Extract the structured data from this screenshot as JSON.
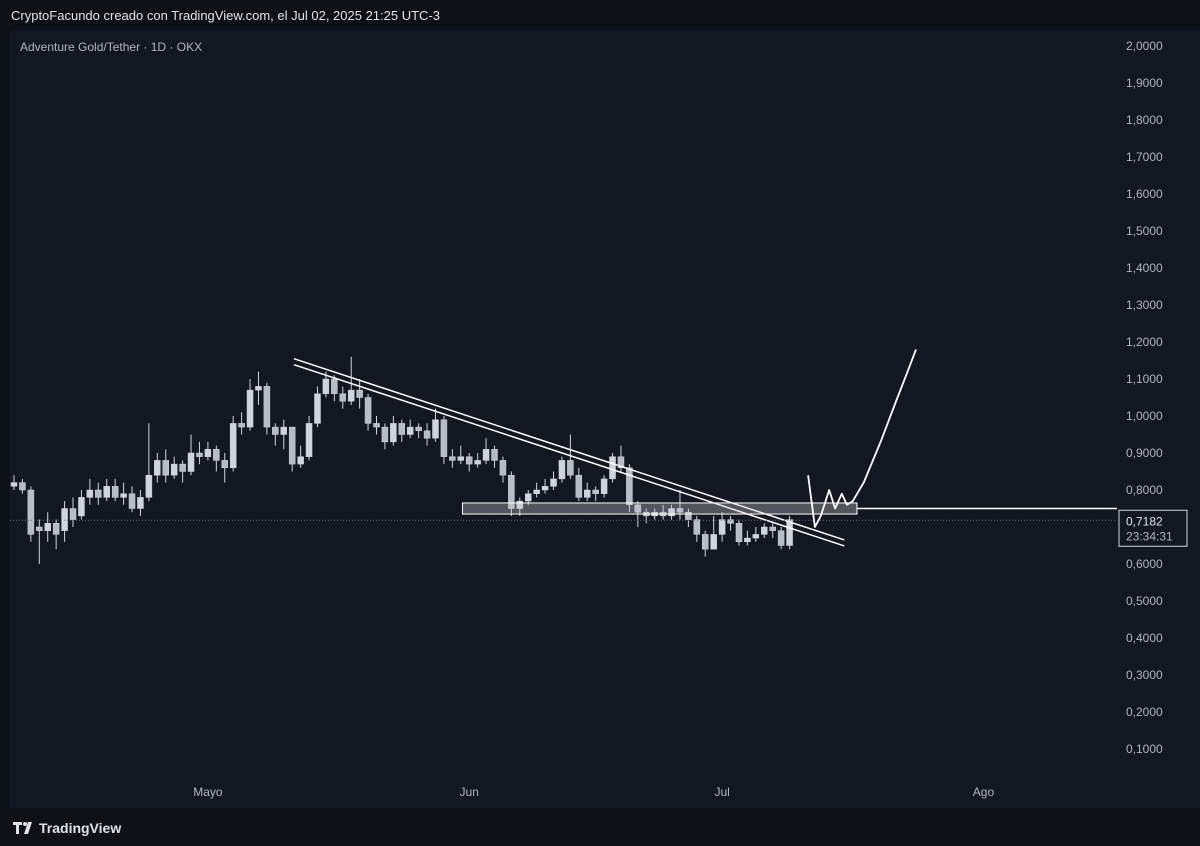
{
  "header": {
    "credit": "CryptoFacundo creado con TradingView.com, el Jul 02, 2025 21:25 UTC-3"
  },
  "footer": {
    "brand": "TradingView"
  },
  "colors": {
    "background": "#131722",
    "candle": "#d1d4dc",
    "drawing": "#ffffff",
    "grid_text": "#b2b5be"
  },
  "chart_data": {
    "type": "candlestick",
    "title": "Adventure Gold/Tether · 1D · OKX",
    "y_ticks": [
      "2,0000",
      "1,9000",
      "1,8000",
      "1,7000",
      "1,6000",
      "1,5000",
      "1,4000",
      "1,3000",
      "1,2000",
      "1,1000",
      "1,0000",
      "0,9000",
      "0,8000",
      "0,7000",
      "0,6000",
      "0,5000",
      "0,4000",
      "0,3000",
      "0,2000",
      "0,1000"
    ],
    "x_ticks": [
      {
        "label": "Mayo",
        "index": 23
      },
      {
        "label": "Jun",
        "index": 54
      },
      {
        "label": "Jul",
        "index": 84
      },
      {
        "label": "Ago",
        "index": 115
      }
    ],
    "ylim": [
      0.05,
      2.05
    ],
    "last_price": {
      "value": "0,7182",
      "countdown": "23:34:31"
    },
    "candles": [
      [
        0.81,
        0.82,
        0.84,
        0.8
      ],
      [
        0.82,
        0.8,
        0.83,
        0.79
      ],
      [
        0.8,
        0.68,
        0.81,
        0.66
      ],
      [
        0.7,
        0.69,
        0.72,
        0.6
      ],
      [
        0.69,
        0.71,
        0.74,
        0.66
      ],
      [
        0.71,
        0.68,
        0.72,
        0.64
      ],
      [
        0.69,
        0.75,
        0.77,
        0.66
      ],
      [
        0.75,
        0.72,
        0.78,
        0.7
      ],
      [
        0.73,
        0.78,
        0.8,
        0.72
      ],
      [
        0.78,
        0.8,
        0.83,
        0.76
      ],
      [
        0.8,
        0.78,
        0.82,
        0.76
      ],
      [
        0.78,
        0.81,
        0.83,
        0.77
      ],
      [
        0.81,
        0.78,
        0.83,
        0.77
      ],
      [
        0.78,
        0.79,
        0.82,
        0.76
      ],
      [
        0.79,
        0.75,
        0.81,
        0.74
      ],
      [
        0.75,
        0.78,
        0.8,
        0.73
      ],
      [
        0.78,
        0.84,
        0.98,
        0.77
      ],
      [
        0.84,
        0.88,
        0.9,
        0.82
      ],
      [
        0.88,
        0.84,
        0.91,
        0.82
      ],
      [
        0.84,
        0.87,
        0.89,
        0.83
      ],
      [
        0.87,
        0.85,
        0.88,
        0.82
      ],
      [
        0.85,
        0.9,
        0.95,
        0.84
      ],
      [
        0.9,
        0.89,
        0.93,
        0.87
      ],
      [
        0.89,
        0.91,
        0.93,
        0.88
      ],
      [
        0.91,
        0.88,
        0.92,
        0.85
      ],
      [
        0.88,
        0.86,
        0.9,
        0.82
      ],
      [
        0.86,
        0.98,
        1.0,
        0.85
      ],
      [
        0.98,
        0.97,
        1.01,
        0.95
      ],
      [
        0.97,
        1.07,
        1.1,
        0.96
      ],
      [
        1.07,
        1.08,
        1.12,
        1.03
      ],
      [
        1.08,
        0.97,
        1.09,
        0.95
      ],
      [
        0.97,
        0.95,
        0.98,
        0.92
      ],
      [
        0.95,
        0.97,
        0.99,
        0.91
      ],
      [
        0.97,
        0.87,
        0.97,
        0.85
      ],
      [
        0.87,
        0.89,
        0.92,
        0.86
      ],
      [
        0.89,
        0.98,
        1.0,
        0.88
      ],
      [
        0.98,
        1.06,
        1.08,
        0.97
      ],
      [
        1.06,
        1.1,
        1.12,
        1.05
      ],
      [
        1.1,
        1.06,
        1.11,
        1.04
      ],
      [
        1.06,
        1.04,
        1.08,
        1.02
      ],
      [
        1.04,
        1.07,
        1.16,
        1.03
      ],
      [
        1.07,
        1.05,
        1.1,
        1.02
      ],
      [
        1.05,
        0.98,
        1.06,
        0.96
      ],
      [
        0.98,
        0.97,
        1.0,
        0.95
      ],
      [
        0.97,
        0.93,
        0.98,
        0.91
      ],
      [
        0.93,
        0.98,
        1.0,
        0.92
      ],
      [
        0.98,
        0.95,
        0.99,
        0.93
      ],
      [
        0.95,
        0.97,
        0.99,
        0.94
      ],
      [
        0.97,
        0.96,
        0.98,
        0.94
      ],
      [
        0.96,
        0.94,
        0.98,
        0.92
      ],
      [
        0.94,
        0.99,
        1.02,
        0.93
      ],
      [
        0.99,
        0.89,
        1.0,
        0.87
      ],
      [
        0.89,
        0.88,
        0.91,
        0.86
      ],
      [
        0.88,
        0.89,
        0.92,
        0.87
      ],
      [
        0.89,
        0.87,
        0.9,
        0.85
      ],
      [
        0.87,
        0.88,
        0.9,
        0.86
      ],
      [
        0.88,
        0.91,
        0.94,
        0.87
      ],
      [
        0.91,
        0.88,
        0.92,
        0.86
      ],
      [
        0.88,
        0.84,
        0.89,
        0.82
      ],
      [
        0.84,
        0.75,
        0.85,
        0.73
      ],
      [
        0.75,
        0.77,
        0.78,
        0.73
      ],
      [
        0.77,
        0.79,
        0.8,
        0.76
      ],
      [
        0.79,
        0.8,
        0.82,
        0.78
      ],
      [
        0.8,
        0.81,
        0.83,
        0.79
      ],
      [
        0.81,
        0.83,
        0.85,
        0.8
      ],
      [
        0.83,
        0.88,
        0.89,
        0.82
      ],
      [
        0.88,
        0.84,
        0.95,
        0.83
      ],
      [
        0.84,
        0.78,
        0.86,
        0.77
      ],
      [
        0.78,
        0.8,
        0.82,
        0.77
      ],
      [
        0.8,
        0.79,
        0.81,
        0.77
      ],
      [
        0.79,
        0.83,
        0.84,
        0.78
      ],
      [
        0.83,
        0.89,
        0.9,
        0.82
      ],
      [
        0.89,
        0.86,
        0.92,
        0.85
      ],
      [
        0.86,
        0.76,
        0.87,
        0.74
      ],
      [
        0.76,
        0.74,
        0.77,
        0.7
      ],
      [
        0.74,
        0.73,
        0.75,
        0.71
      ],
      [
        0.73,
        0.74,
        0.75,
        0.72
      ],
      [
        0.74,
        0.73,
        0.76,
        0.72
      ],
      [
        0.73,
        0.75,
        0.76,
        0.72
      ],
      [
        0.75,
        0.74,
        0.8,
        0.72
      ],
      [
        0.74,
        0.72,
        0.75,
        0.7
      ],
      [
        0.72,
        0.68,
        0.73,
        0.66
      ],
      [
        0.68,
        0.64,
        0.69,
        0.62
      ],
      [
        0.64,
        0.68,
        0.73,
        0.64
      ],
      [
        0.68,
        0.72,
        0.74,
        0.66
      ],
      [
        0.72,
        0.71,
        0.73,
        0.69
      ],
      [
        0.71,
        0.66,
        0.72,
        0.65
      ],
      [
        0.66,
        0.67,
        0.69,
        0.65
      ],
      [
        0.67,
        0.68,
        0.7,
        0.66
      ],
      [
        0.68,
        0.7,
        0.71,
        0.67
      ],
      [
        0.7,
        0.69,
        0.71,
        0.67
      ],
      [
        0.69,
        0.65,
        0.7,
        0.64
      ],
      [
        0.65,
        0.72,
        0.73,
        0.64
      ]
    ]
  }
}
